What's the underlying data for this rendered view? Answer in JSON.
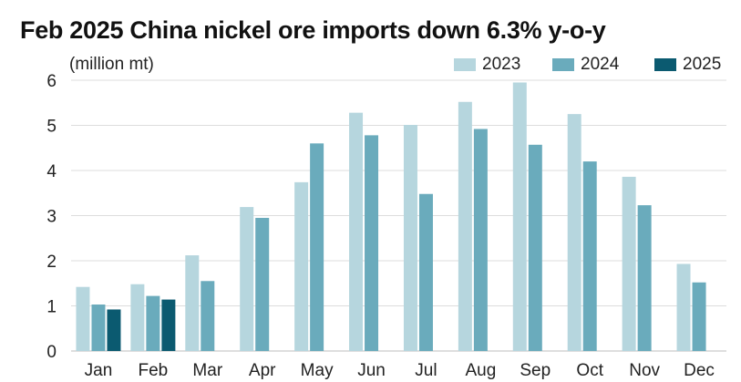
{
  "title": "Feb 2025 China nickel ore imports down 6.3% y-o-y",
  "unit_label": "(million mt)",
  "colors": {
    "2023": "#b6d6de",
    "2024": "#6aabbc",
    "2025": "#0b5a70",
    "grid": "#dddddd"
  },
  "chart_data": {
    "type": "bar",
    "title": "Feb 2025 China nickel ore imports down 6.3% y-o-y",
    "ylabel": "(million mt)",
    "xlabel": "",
    "ylim": [
      0,
      6
    ],
    "yticks": [
      "0",
      "1",
      "2",
      "3",
      "4",
      "5",
      "6"
    ],
    "grid": true,
    "legend_position": "top-right",
    "categories": [
      "Jan",
      "Feb",
      "Mar",
      "Apr",
      "May",
      "Jun",
      "Jul",
      "Aug",
      "Sep",
      "Oct",
      "Nov",
      "Dec"
    ],
    "series": [
      {
        "name": "2023",
        "values": [
          1.42,
          1.48,
          2.12,
          3.19,
          3.74,
          5.28,
          5.01,
          5.52,
          5.95,
          5.25,
          3.86,
          1.93
        ]
      },
      {
        "name": "2024",
        "values": [
          1.03,
          1.22,
          1.55,
          2.95,
          4.6,
          4.78,
          3.48,
          4.92,
          4.57,
          4.2,
          3.23,
          1.52
        ]
      },
      {
        "name": "2025",
        "values": [
          0.92,
          1.14,
          null,
          null,
          null,
          null,
          null,
          null,
          null,
          null,
          null,
          null
        ]
      }
    ]
  }
}
